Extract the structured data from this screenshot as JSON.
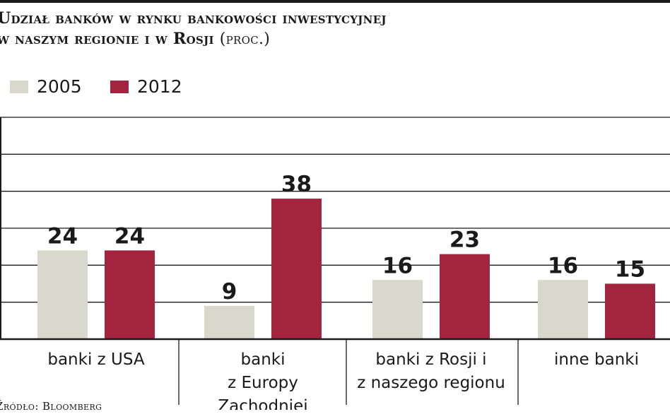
{
  "title": {
    "line1": "Udział banków w rynku bankowości inwestycyjnej",
    "line2": "w naszym regionie i w Rosji",
    "unit": "(proc.)"
  },
  "source": "Źródło: Bloomberg",
  "colors": {
    "series_2005": "#d9d8cc",
    "series_2012": "#a3243f",
    "grid": "#1a1a1a"
  },
  "chart_data": {
    "type": "bar",
    "categories": [
      [
        "banki z USA"
      ],
      [
        "banki",
        "z Europy",
        "Zachodniej"
      ],
      [
        "banki z Rosji i",
        "z naszego regionu"
      ],
      [
        "inne banki"
      ]
    ],
    "series": [
      {
        "name": "2005",
        "values": [
          24,
          9,
          16,
          16
        ]
      },
      {
        "name": "2012",
        "values": [
          24,
          38,
          23,
          15
        ]
      }
    ],
    "ylim": [
      0,
      60
    ],
    "grid": true,
    "legend": "top-left"
  }
}
